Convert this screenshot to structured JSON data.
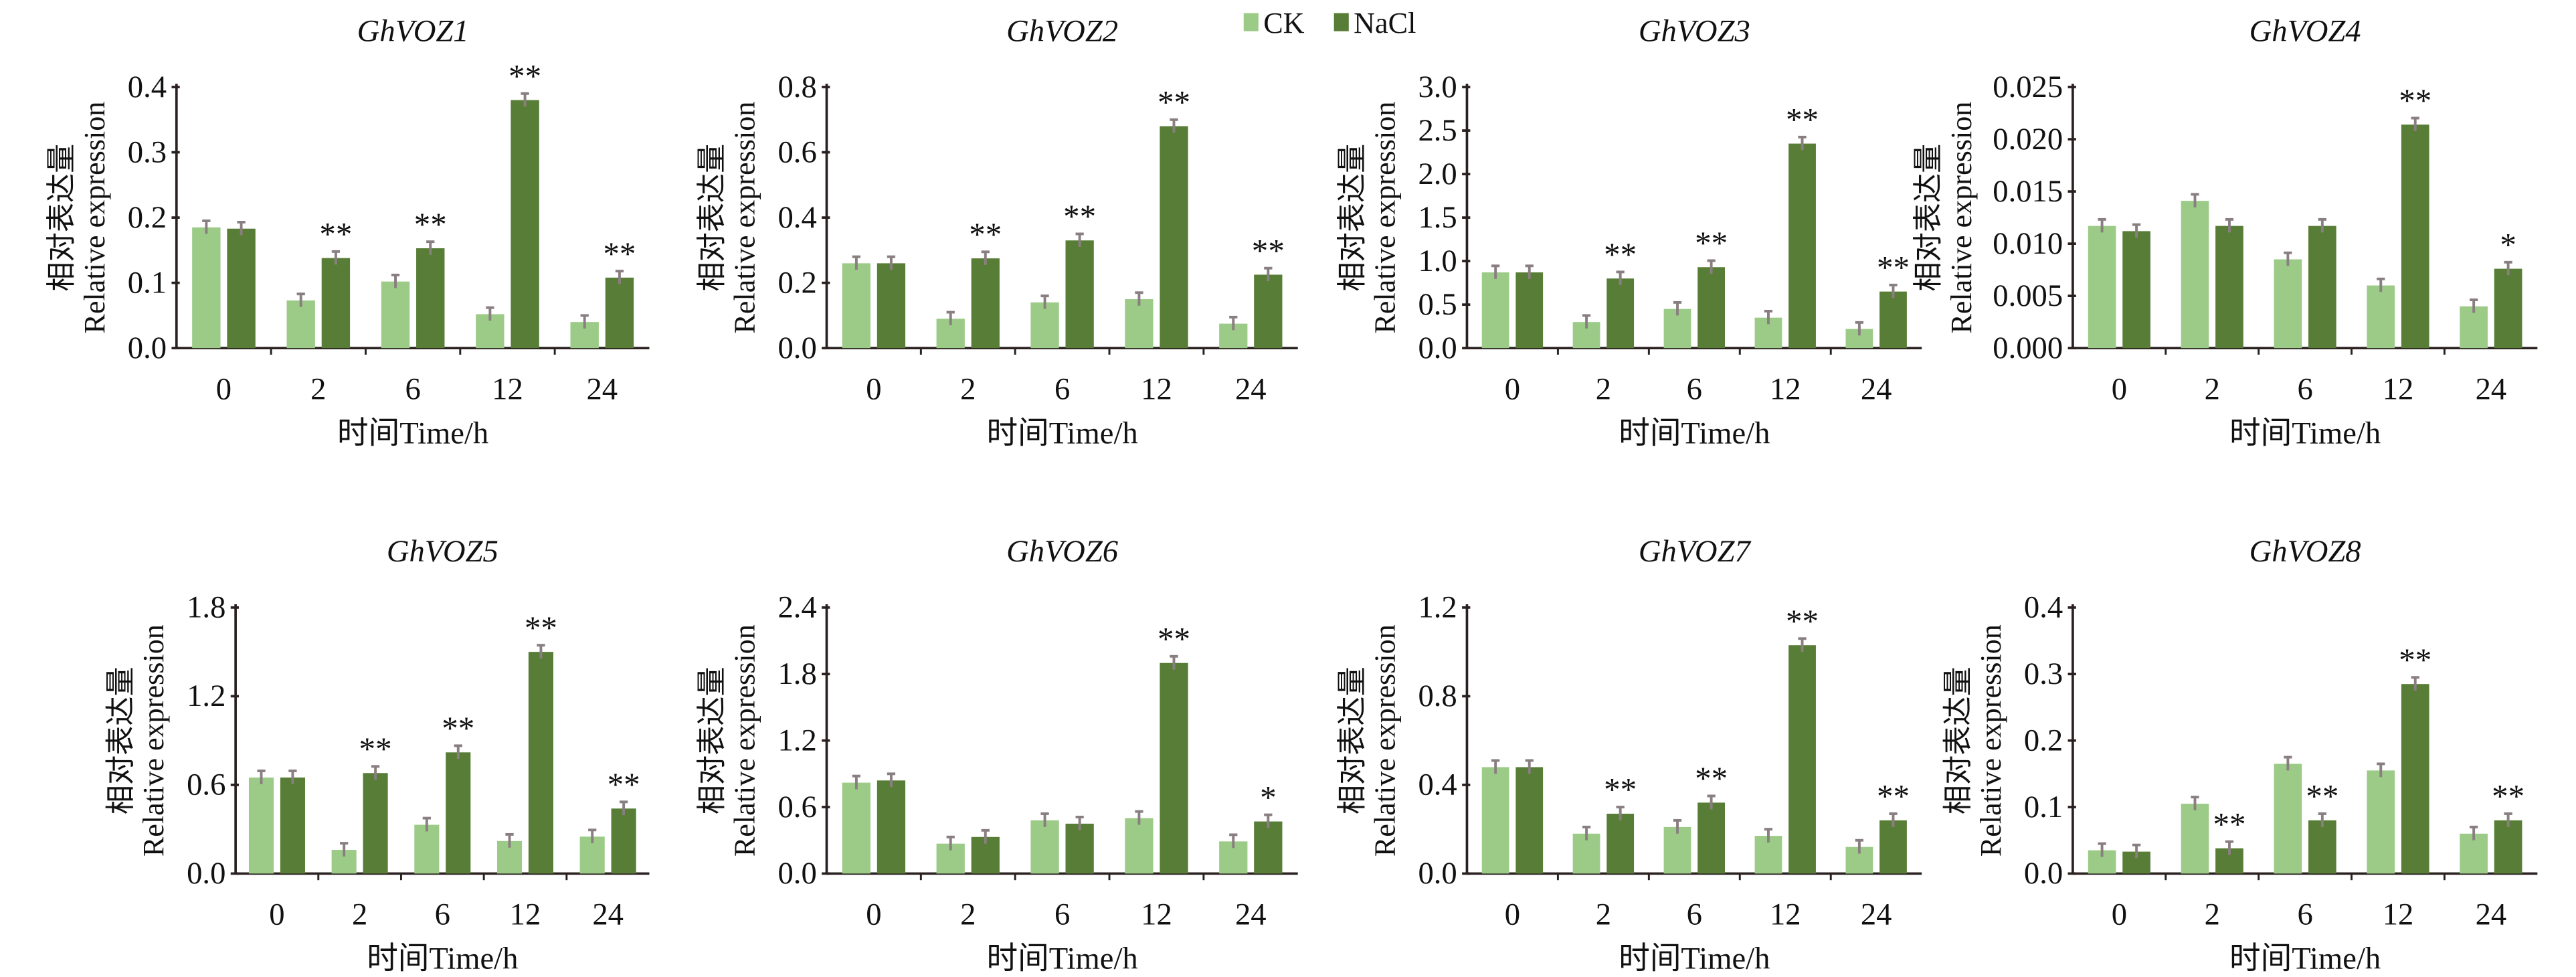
{
  "chart_data": {
    "type": "bar",
    "legend": {
      "position": "top-center",
      "entries": [
        "CK",
        "NaCl"
      ]
    },
    "colors": {
      "CK": "#9ccb88",
      "NaCl": "#587d36",
      "error": "#8a7f80",
      "axis": "#2a2020"
    },
    "categories": [
      "0",
      "2",
      "6",
      "12",
      "24"
    ],
    "xlabel": "时间Time/h",
    "ylabel_cn": "相对表达量",
    "ylabel_en": "Relative expression",
    "panels": [
      {
        "title": "GhVOZ1",
        "ylim": [
          0,
          0.4
        ],
        "yticks": [
          "0.0",
          "0.1",
          "0.2",
          "0.3",
          "0.4"
        ],
        "series": [
          {
            "name": "CK",
            "values": [
              0.185,
              0.073,
              0.102,
              0.052,
              0.04
            ]
          },
          {
            "name": "NaCl",
            "values": [
              0.183,
              0.138,
              0.153,
              0.38,
              0.108
            ]
          }
        ],
        "significance": [
          "",
          "**",
          "**",
          "**",
          "**"
        ]
      },
      {
        "title": "GhVOZ2",
        "ylim": [
          0,
          0.8
        ],
        "yticks": [
          "0.0",
          "0.2",
          "0.4",
          "0.6",
          "0.8"
        ],
        "series": [
          {
            "name": "CK",
            "values": [
              0.26,
              0.09,
              0.14,
              0.15,
              0.075
            ]
          },
          {
            "name": "NaCl",
            "values": [
              0.26,
              0.275,
              0.33,
              0.68,
              0.225
            ]
          }
        ],
        "significance": [
          "",
          "**",
          "**",
          "**",
          "**"
        ]
      },
      {
        "title": "GhVOZ3",
        "ylim": [
          0,
          3.0
        ],
        "yticks": [
          "0.0",
          "0.5",
          "1.0",
          "1.5",
          "2.0",
          "2.5",
          "3.0"
        ],
        "series": [
          {
            "name": "CK",
            "values": [
              0.87,
              0.3,
              0.45,
              0.35,
              0.22
            ]
          },
          {
            "name": "NaCl",
            "values": [
              0.87,
              0.8,
              0.93,
              2.35,
              0.65
            ]
          }
        ],
        "significance": [
          "",
          "**",
          "**",
          "**",
          "**"
        ]
      },
      {
        "title": "GhVOZ4",
        "ylim": [
          0,
          0.025
        ],
        "yticks": [
          "0.000",
          "0.005",
          "0.010",
          "0.015",
          "0.020",
          "0.025"
        ],
        "series": [
          {
            "name": "CK",
            "values": [
              0.0117,
              0.0141,
              0.0085,
              0.006,
              0.004
            ]
          },
          {
            "name": "NaCl",
            "values": [
              0.0112,
              0.0117,
              0.0117,
              0.0214,
              0.0076
            ]
          }
        ],
        "significance": [
          "",
          "",
          "",
          "**",
          "*"
        ]
      },
      {
        "title": "GhVOZ5",
        "ylim": [
          0,
          1.8
        ],
        "yticks": [
          "0.0",
          "0.6",
          "1.2",
          "1.8"
        ],
        "series": [
          {
            "name": "CK",
            "values": [
              0.65,
              0.16,
              0.33,
              0.22,
              0.25
            ]
          },
          {
            "name": "NaCl",
            "values": [
              0.65,
              0.68,
              0.82,
              1.5,
              0.44
            ]
          }
        ],
        "significance": [
          "",
          "**",
          "**",
          "**",
          "**"
        ]
      },
      {
        "title": "GhVOZ6",
        "ylim": [
          0,
          2.4
        ],
        "yticks": [
          "0.0",
          "0.6",
          "1.2",
          "1.8",
          "2.4"
        ],
        "series": [
          {
            "name": "CK",
            "values": [
              0.82,
              0.27,
              0.48,
              0.5,
              0.29
            ]
          },
          {
            "name": "NaCl",
            "values": [
              0.84,
              0.33,
              0.45,
              1.9,
              0.47
            ]
          }
        ],
        "significance": [
          "",
          "",
          "",
          "**",
          "*"
        ]
      },
      {
        "title": "GhVOZ7",
        "ylim": [
          0,
          1.2
        ],
        "yticks": [
          "0.0",
          "0.4",
          "0.8",
          "1.2"
        ],
        "series": [
          {
            "name": "CK",
            "values": [
              0.48,
              0.18,
              0.21,
              0.17,
              0.12
            ]
          },
          {
            "name": "NaCl",
            "values": [
              0.48,
              0.27,
              0.32,
              1.03,
              0.24
            ]
          }
        ],
        "significance": [
          "",
          "**",
          "**",
          "**",
          "**"
        ]
      },
      {
        "title": "GhVOZ8",
        "ylim": [
          0,
          0.4
        ],
        "yticks": [
          "0.0",
          "0.1",
          "0.2",
          "0.3",
          "0.4"
        ],
        "series": [
          {
            "name": "CK",
            "values": [
              0.035,
              0.105,
              0.165,
              0.155,
              0.06
            ]
          },
          {
            "name": "NaCl",
            "values": [
              0.033,
              0.038,
              0.08,
              0.285,
              0.08
            ]
          }
        ],
        "significance": [
          "",
          "**",
          "**",
          "**",
          "**"
        ]
      }
    ]
  }
}
